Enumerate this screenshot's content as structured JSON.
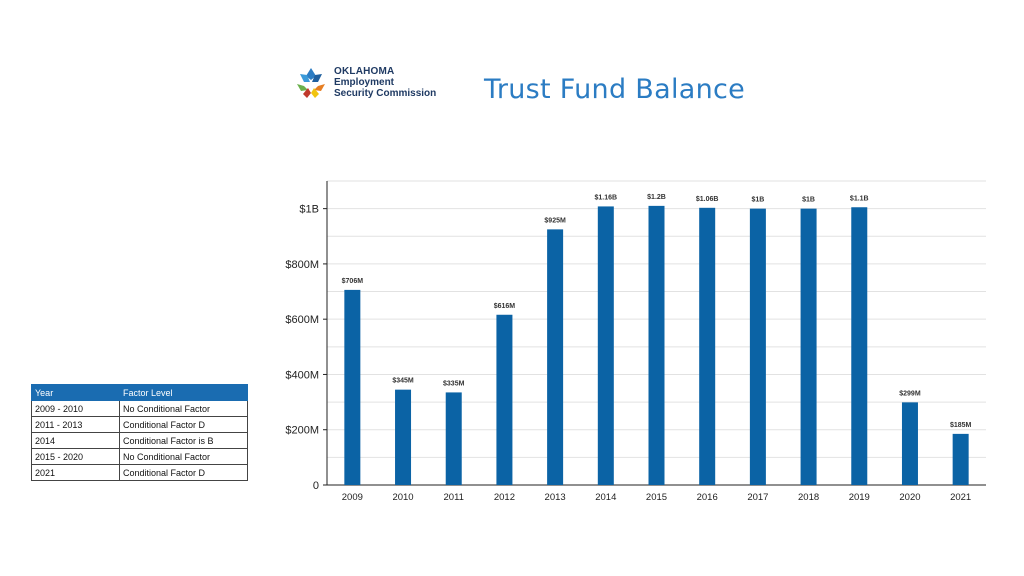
{
  "header": {
    "logo_line1": "OKLAHOMA",
    "logo_line2": "Employment",
    "logo_line3": "Security Commission",
    "title": "Trust Fund Balance"
  },
  "factor_table": {
    "columns": [
      "Year",
      "Factor Level"
    ],
    "rows": [
      [
        "2009 - 2010",
        "No Conditional Factor"
      ],
      [
        "2011 - 2013",
        "Conditional Factor D"
      ],
      [
        "2014",
        "Conditional Factor is B"
      ],
      [
        "2015 - 2020",
        "No Conditional Factor"
      ],
      [
        "2021",
        "Conditional Factor D"
      ]
    ]
  },
  "colors": {
    "bar": "#0b63a5",
    "title": "#2b7cc3",
    "table_header": "#1a6cb1"
  },
  "chart_data": {
    "type": "bar",
    "title": "Trust Fund Balance",
    "xlabel": "",
    "ylabel": "",
    "categories": [
      "2009",
      "2010",
      "2011",
      "2012",
      "2013",
      "2014",
      "2015",
      "2016",
      "2017",
      "2018",
      "2019",
      "2020",
      "2021"
    ],
    "values": [
      706,
      345,
      335,
      616,
      925,
      1160,
      1200,
      1060,
      1000,
      1000,
      1100,
      299,
      185
    ],
    "data_labels": [
      "$706M",
      "$345M",
      "$335M",
      "$616M",
      "$925M",
      "$1.16B",
      "$1.2B",
      "$1.06B",
      "$1B",
      "$1B",
      "$1.1B",
      "$299M",
      "$185M"
    ],
    "yticks": [
      0,
      200,
      400,
      600,
      800,
      1000
    ],
    "ytick_labels": [
      "0",
      "$200M",
      "$400M",
      "$600M",
      "$800M",
      "$1B"
    ],
    "ylim": [
      0,
      1100
    ],
    "grid": true
  }
}
